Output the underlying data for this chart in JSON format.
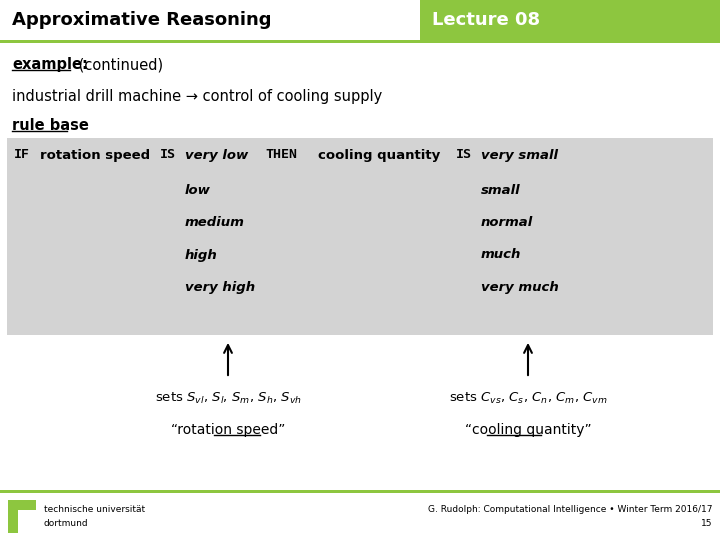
{
  "title_left": "Approximative Reasoning",
  "title_right": "Lecture 08",
  "green_color": "#8dc63f",
  "white": "#ffffff",
  "black": "#000000",
  "gray_bg": "#d3d3d3",
  "slide_bg": "#ffffff",
  "subtitle_bold": "example:",
  "subtitle_rest": " (continued)",
  "line1": "industrial drill machine → control of cooling supply",
  "rule_base_label": "rule base",
  "footer_left1": "technische universität",
  "footer_left2": "dortmund",
  "footer_right1": "G. Rudolph: Computational Intelligence • Winter Term 2016/17",
  "footer_right2": "15",
  "speed_italic": [
    "very low",
    "low",
    "medium",
    "high",
    "very high"
  ],
  "cooling_italic": [
    "very small",
    "small",
    "normal",
    "much",
    "very much"
  ],
  "label_left": "“rotation speed”",
  "label_right": "“cooling quantity”"
}
